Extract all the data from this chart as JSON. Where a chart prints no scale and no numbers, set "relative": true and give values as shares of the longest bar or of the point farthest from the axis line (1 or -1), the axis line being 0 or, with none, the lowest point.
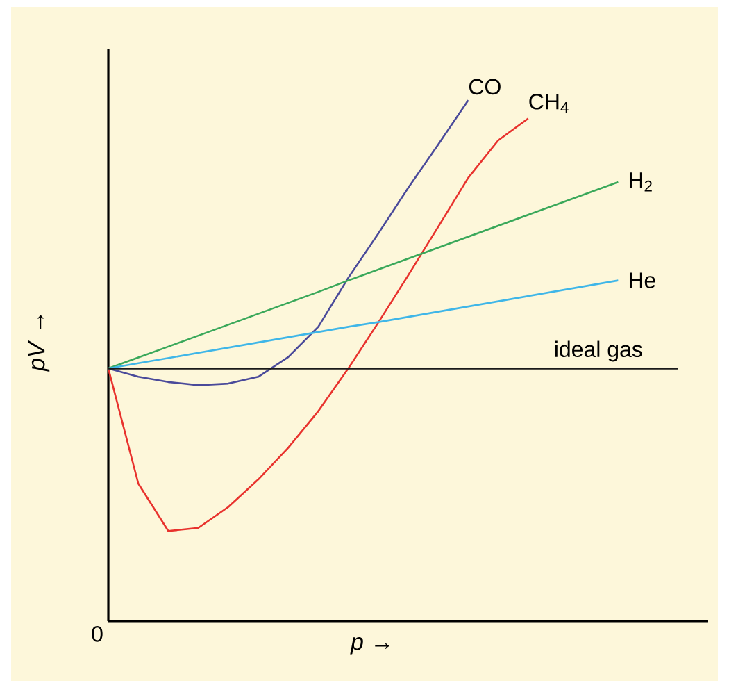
{
  "chart_data": {
    "type": "line",
    "relative": true,
    "xlabel": "*p* →",
    "ylabel": "*pV* →",
    "annotations": [
      "0"
    ],
    "marker": "none",
    "categories": [
      null,
      null,
      null,
      null,
      null,
      null,
      null,
      null,
      null,
      null,
      null,
      null,
      null,
      null,
      null,
      null,
      null,
      null,
      null,
      null,
      null
    ],
    "series": [
      {
        "name": "CO",
        "color": "#4a4a9a",
        "values": [
          0.485,
          0.469,
          0.459,
          0.453,
          0.456,
          0.469,
          0.507,
          0.565,
          0.659,
          0.744,
          0.832,
          0.915,
          1.0,
          null,
          null,
          null,
          null,
          null,
          null,
          null,
          null
        ]
      },
      {
        "name": "CH$_{4}$",
        "color": "#e8322d",
        "values": [
          0.485,
          0.264,
          0.173,
          0.179,
          0.219,
          0.272,
          0.333,
          0.403,
          0.485,
          0.573,
          0.664,
          0.757,
          0.851,
          0.923,
          0.965,
          null,
          null,
          null,
          null,
          null,
          null
        ]
      },
      {
        "name": "H$_{2}$",
        "color": "#3aa85a",
        "values": [
          0.485,
          0.506,
          0.527,
          0.548,
          0.569,
          0.59,
          0.611,
          0.632,
          0.654,
          0.675,
          0.696,
          0.717,
          0.738,
          0.759,
          0.78,
          0.801,
          0.822,
          0.843,
          null,
          null,
          null
        ]
      },
      {
        "name": "He",
        "color": "#3fb6e8",
        "values": [
          0.485,
          0.495,
          0.505,
          0.515,
          0.525,
          0.535,
          0.545,
          0.555,
          0.565,
          0.574,
          0.584,
          0.594,
          0.604,
          0.614,
          0.624,
          0.634,
          0.644,
          0.654,
          null,
          null,
          null
        ]
      },
      {
        "name": "ideal gas",
        "color": "#1a1a1a",
        "values": [
          0.485,
          0.485,
          0.485,
          0.485,
          0.485,
          0.485,
          0.485,
          0.485,
          0.485,
          0.485,
          0.485,
          0.485,
          0.485,
          0.485,
          0.485,
          0.485,
          0.485,
          0.485,
          0.485,
          0.485,
          null
        ]
      }
    ]
  }
}
